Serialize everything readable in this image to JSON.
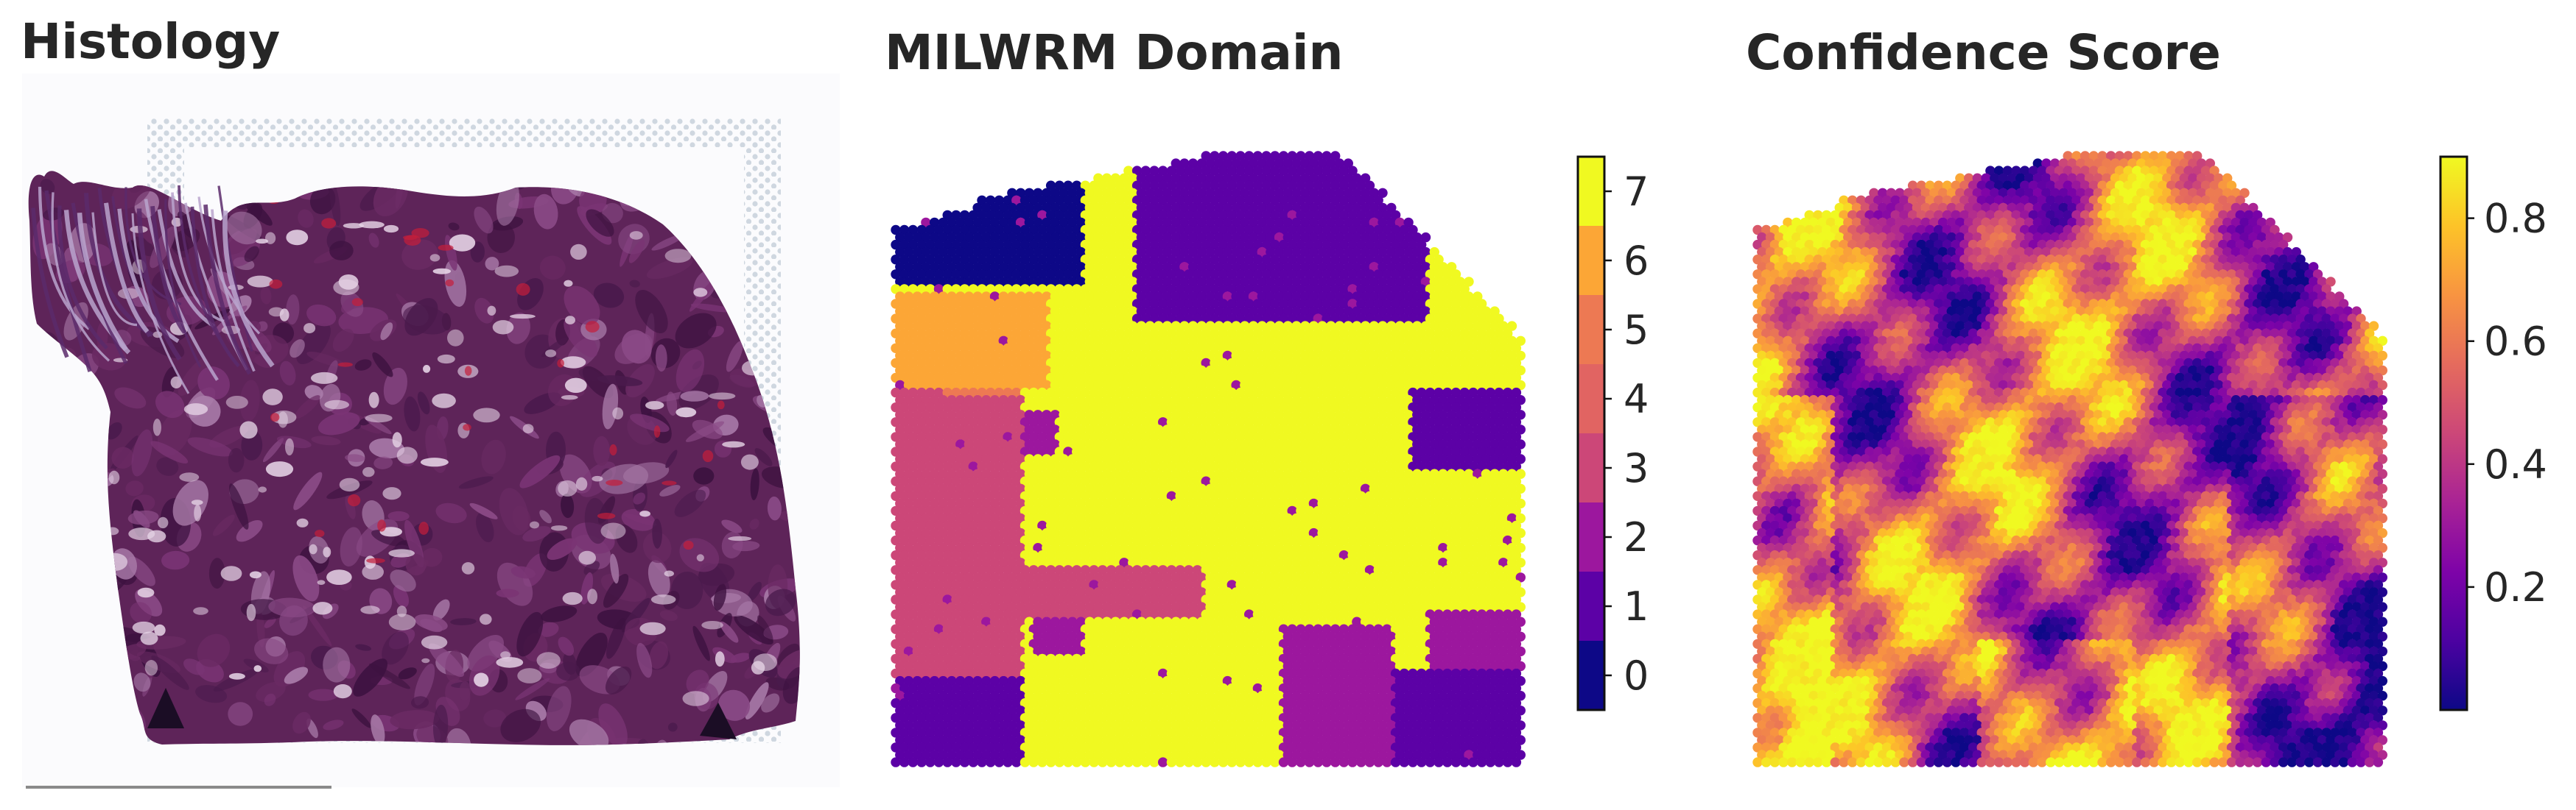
{
  "panels": [
    {
      "title": "Histology"
    },
    {
      "title": "MILWRM Domain"
    },
    {
      "title": "Confidence Score"
    }
  ],
  "chart_data": [
    {
      "type": "image",
      "title": "Histology",
      "subject": "H&E stained tissue section",
      "colors": {
        "tissue_dark": "#3d1240",
        "tissue_mid": "#6a2a63",
        "tissue_light": "#a87aa8",
        "stroma_red": "#c41e3a",
        "lumen": "#efe6ef",
        "fiducial": "#c7d0da"
      }
    },
    {
      "type": "heatmap",
      "title": "MILWRM Domain",
      "colormap": "plasma",
      "discrete": true,
      "categories": [
        0,
        1,
        2,
        3,
        4,
        5,
        6,
        7
      ],
      "colorbar_ticks": [
        "0",
        "1",
        "2",
        "3",
        "4",
        "5",
        "6",
        "7"
      ],
      "category_colors": [
        "#0d0887",
        "#5c01a6",
        "#9c179e",
        "#cc4778",
        "#e16462",
        "#ed7953",
        "#fca636",
        "#f0f921"
      ],
      "axes_visible": false
    },
    {
      "type": "heatmap",
      "title": "Confidence Score",
      "colormap": "plasma",
      "discrete": false,
      "vmin": 0.0,
      "vmax": 0.9,
      "colorbar_ticks": [
        0.2,
        0.4,
        0.6,
        0.8
      ],
      "colorbar_tick_labels": [
        "0.2",
        "0.4",
        "0.6",
        "0.8"
      ],
      "axes_visible": false
    }
  ]
}
